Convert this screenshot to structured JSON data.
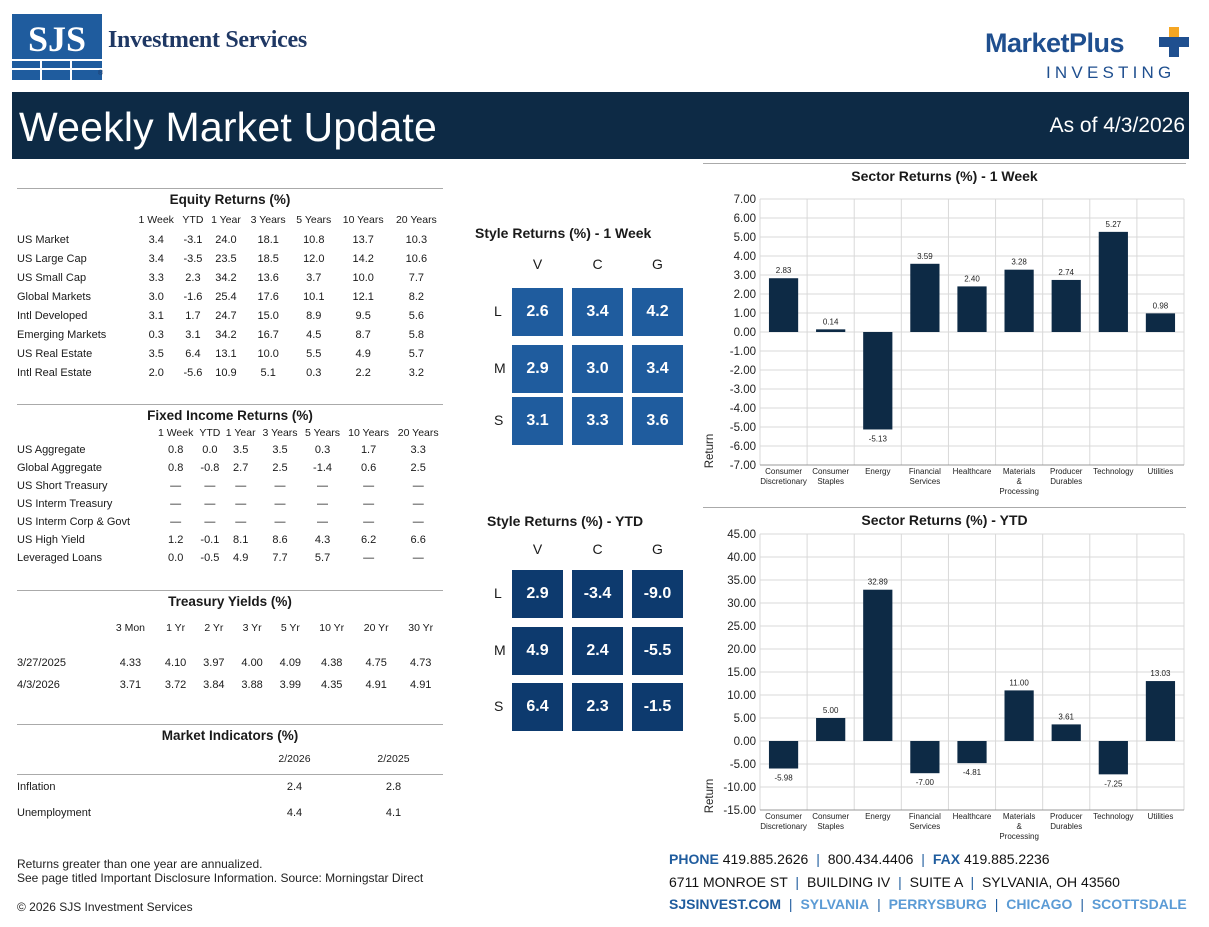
{
  "header": {
    "brand_mark": "SJS",
    "brand_name": "Investment Services",
    "brand_reg": "®",
    "partner_name": "MarketPlus",
    "partner_sub": "INVESTING",
    "title": "Weekly Market Update",
    "as_of": "As of 4/3/2026"
  },
  "colors": {
    "navy": "#0d2a45",
    "box": "#1f5c9e",
    "box_dark": "#0d3a6e",
    "bar": "#0d2a45",
    "city": "#5b9bd5"
  },
  "equity": {
    "title": "Equity Returns (%)",
    "columns": [
      "",
      "1 Week",
      "YTD",
      "1 Year",
      "3 Years",
      "5 Years",
      "10 Years",
      "20 Years"
    ],
    "rows": [
      [
        "US Market",
        "3.4",
        "-3.1",
        "24.0",
        "18.1",
        "10.8",
        "13.7",
        "10.3"
      ],
      [
        "US Large Cap",
        "3.4",
        "-3.5",
        "23.5",
        "18.5",
        "12.0",
        "14.2",
        "10.6"
      ],
      [
        "US Small Cap",
        "3.3",
        "2.3",
        "34.2",
        "13.6",
        "3.7",
        "10.0",
        "7.7"
      ],
      [
        "Global Markets",
        "3.0",
        "-1.6",
        "25.4",
        "17.6",
        "10.1",
        "12.1",
        "8.2"
      ],
      [
        "Intl Developed",
        "3.1",
        "1.7",
        "24.7",
        "15.0",
        "8.9",
        "9.5",
        "5.6"
      ],
      [
        "Emerging Markets",
        "0.3",
        "3.1",
        "34.2",
        "16.7",
        "4.5",
        "8.7",
        "5.8"
      ],
      [
        "US Real Estate",
        "3.5",
        "6.4",
        "13.1",
        "10.0",
        "5.5",
        "4.9",
        "5.7"
      ],
      [
        "Intl Real Estate",
        "2.0",
        "-5.6",
        "10.9",
        "5.1",
        "0.3",
        "2.2",
        "3.2"
      ]
    ]
  },
  "fixed_income": {
    "title": "Fixed Income Returns (%)",
    "columns": [
      "",
      "1 Week",
      "YTD",
      "1 Year",
      "3 Years",
      "5 Years",
      "10 Years",
      "20 Years"
    ],
    "rows": [
      [
        "US Aggregate",
        "0.8",
        "0.0",
        "3.5",
        "3.5",
        "0.3",
        "1.7",
        "3.3"
      ],
      [
        "Global Aggregate",
        "0.8",
        "-0.8",
        "2.7",
        "2.5",
        "-1.4",
        "0.6",
        "2.5"
      ],
      [
        "US Short Treasury",
        "—",
        "—",
        "—",
        "—",
        "—",
        "—",
        "—"
      ],
      [
        "US Interm Treasury",
        "—",
        "—",
        "—",
        "—",
        "—",
        "—",
        "—"
      ],
      [
        "US Interm Corp & Govt",
        "—",
        "—",
        "—",
        "—",
        "—",
        "—",
        "—"
      ],
      [
        "US High Yield",
        "1.2",
        "-0.1",
        "8.1",
        "8.6",
        "4.3",
        "6.2",
        "6.6"
      ],
      [
        "Leveraged Loans",
        "0.0",
        "-0.5",
        "4.9",
        "7.7",
        "5.7",
        "—",
        "—"
      ]
    ]
  },
  "treasury": {
    "title": "Treasury Yields (%)",
    "columns": [
      "",
      "3 Mon",
      "1 Yr",
      "2 Yr",
      "3 Yr",
      "5 Yr",
      "10 Yr",
      "20 Yr",
      "30 Yr"
    ],
    "rows": [
      [
        "3/27/2025",
        "4.33",
        "4.10",
        "3.97",
        "4.00",
        "4.09",
        "4.38",
        "4.75",
        "4.73"
      ],
      [
        "4/3/2026",
        "3.71",
        "3.72",
        "3.84",
        "3.88",
        "3.99",
        "4.35",
        "4.91",
        "4.91"
      ]
    ]
  },
  "indicators": {
    "title": "Market Indicators (%)",
    "columns": [
      "",
      "2/2026",
      "2/2025"
    ],
    "rows": [
      [
        "Inflation",
        "2.4",
        "2.8"
      ],
      [
        "Unemployment",
        "4.4",
        "4.1"
      ]
    ]
  },
  "style_week": {
    "title": "Style Returns (%) - 1 Week",
    "cols": [
      "V",
      "C",
      "G"
    ],
    "rows": [
      "L",
      "M",
      "S"
    ],
    "values": [
      [
        "2.6",
        "3.4",
        "4.2"
      ],
      [
        "2.9",
        "3.0",
        "3.4"
      ],
      [
        "3.1",
        "3.3",
        "3.6"
      ]
    ]
  },
  "style_ytd": {
    "title": "Style Returns (%) - YTD",
    "cols": [
      "V",
      "C",
      "G"
    ],
    "rows": [
      "L",
      "M",
      "S"
    ],
    "values": [
      [
        "2.9",
        "-3.4",
        "-9.0"
      ],
      [
        "4.9",
        "2.4",
        "-5.5"
      ],
      [
        "6.4",
        "2.3",
        "-1.5"
      ]
    ]
  },
  "chart_data": [
    {
      "type": "bar",
      "title": "Sector Returns (%) - 1 Week",
      "ylabel": "Return",
      "categories": [
        "Consumer\nDiscretionary",
        "Consumer\nStaples",
        "Energy",
        "Financial\nServices",
        "Healthcare",
        "Materials\n&\nProcessing",
        "Producer\nDurables",
        "Technology",
        "Utilities"
      ],
      "values": [
        2.83,
        0.14,
        -5.13,
        3.59,
        2.4,
        3.28,
        2.74,
        5.27,
        0.98
      ],
      "labels": [
        "2.83",
        "0.14",
        "-5.13",
        "3.59",
        "2.40",
        "3.28",
        "2.74",
        "5.27",
        "0.98"
      ],
      "ticks": [
        "7.00",
        "6.00",
        "5.00",
        "4.00",
        "3.00",
        "2.00",
        "1.00",
        "0.00",
        "-1.00",
        "-2.00",
        "-3.00",
        "-4.00",
        "-5.00",
        "-6.00",
        "-7.00"
      ],
      "ylim": [
        -7,
        7
      ]
    },
    {
      "type": "bar",
      "title": "Sector Returns (%) - YTD",
      "ylabel": "Return",
      "categories": [
        "Consumer\nDiscretionary",
        "Consumer\nStaples",
        "Energy",
        "Financial\nServices",
        "Healthcare",
        "Materials\n&\nProcessing",
        "Producer\nDurables",
        "Technology",
        "Utilities"
      ],
      "values": [
        -5.98,
        5.0,
        32.89,
        -7.0,
        -4.81,
        11.0,
        3.61,
        -7.25,
        13.03
      ],
      "labels": [
        "-5.98",
        "5.00",
        "32.89",
        "-7.00",
        "-4.81",
        "11.00",
        "3.61",
        "-7.25",
        "13.03"
      ],
      "ticks": [
        "45.00",
        "40.00",
        "35.00",
        "30.00",
        "25.00",
        "20.00",
        "15.00",
        "10.00",
        "5.00",
        "0.00",
        "-5.00",
        "-10.00",
        "-15.00"
      ],
      "ylim": [
        -15,
        45
      ]
    }
  ],
  "footer": {
    "note1": "Returns greater than one year are annualized.",
    "note2": "See page titled Important Disclosure Information. Source: Morningstar Direct",
    "copyright": "© 2026 SJS Investment Services",
    "phone_label": "PHONE",
    "phone": "419.885.2626",
    "phone2": "800.434.4406",
    "fax_label": "FAX",
    "fax": "419.885.2236",
    "address": [
      "6711 MONROE ST",
      "BUILDING IV",
      "SUITE A",
      "SYLVANIA, OH 43560"
    ],
    "website": "SJSINVEST.COM",
    "cities": [
      "SYLVANIA",
      "PERRYSBURG",
      "CHICAGO",
      "SCOTTSDALE"
    ]
  }
}
